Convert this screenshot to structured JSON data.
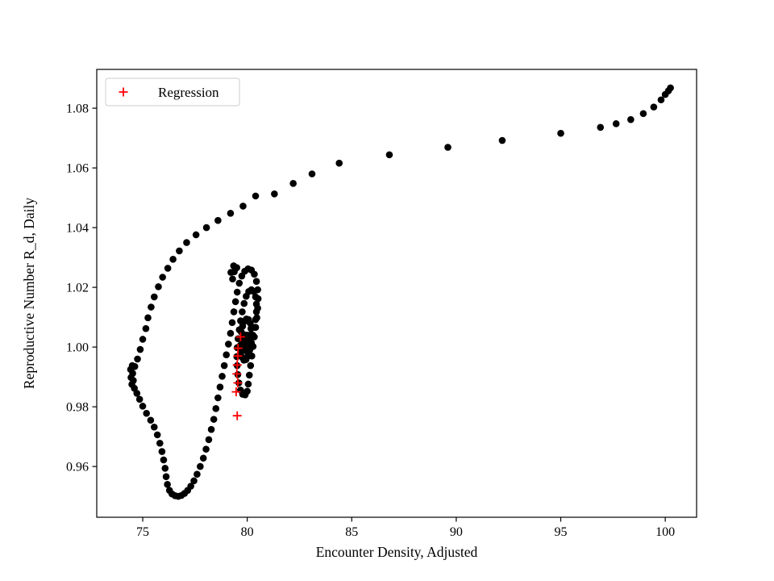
{
  "chart_data": {
    "type": "scatter",
    "title": "",
    "xlabel": "Encounter Density, Adjusted",
    "ylabel": "Reproductive Number R_d, Daily",
    "xlim": [
      72.8,
      101.5
    ],
    "ylim": [
      0.943,
      1.093
    ],
    "xticks": [
      75,
      80,
      85,
      90,
      95,
      100
    ],
    "xtick_labels": [
      "75",
      "80",
      "85",
      "90",
      "95",
      "100"
    ],
    "yticks": [
      0.96,
      0.98,
      1.0,
      1.02,
      1.04,
      1.06,
      1.08
    ],
    "ytick_labels": [
      "0.96",
      "0.98",
      "1.00",
      "1.02",
      "1.04",
      "1.06",
      "1.08"
    ],
    "grid": false,
    "background_color": "#ffffff",
    "spine_color": "#000000",
    "legend": {
      "position": "upper left",
      "edge_color": "#cccccc",
      "entries": [
        {
          "label": "Regression",
          "marker": "plus",
          "color": "#ff0000"
        }
      ]
    },
    "series": [
      {
        "name": "trajectory",
        "marker": "circle",
        "color": "#000000",
        "marker_radius": 4.3,
        "points": [
          [
            100.25,
            1.0868
          ],
          [
            100.15,
            1.0858
          ],
          [
            100.0,
            1.0846
          ],
          [
            99.8,
            1.0828
          ],
          [
            99.45,
            1.0804
          ],
          [
            98.95,
            1.0782
          ],
          [
            98.35,
            1.0762
          ],
          [
            97.65,
            1.0748
          ],
          [
            96.9,
            1.0736
          ],
          [
            95.0,
            1.0716
          ],
          [
            92.2,
            1.0692
          ],
          [
            89.6,
            1.0669
          ],
          [
            86.8,
            1.0644
          ],
          [
            84.4,
            1.0616
          ],
          [
            83.1,
            1.058
          ],
          [
            82.2,
            1.0548
          ],
          [
            81.3,
            1.0513
          ],
          [
            80.4,
            1.0506
          ],
          [
            79.8,
            1.0472
          ],
          [
            79.2,
            1.0448
          ],
          [
            78.6,
            1.0424
          ],
          [
            78.05,
            1.04
          ],
          [
            77.55,
            1.0376
          ],
          [
            77.1,
            1.035
          ],
          [
            76.75,
            1.0322
          ],
          [
            76.45,
            1.0294
          ],
          [
            76.2,
            1.0264
          ],
          [
            75.95,
            1.0234
          ],
          [
            75.75,
            1.0202
          ],
          [
            75.55,
            1.0168
          ],
          [
            75.4,
            1.0134
          ],
          [
            75.25,
            1.0098
          ],
          [
            75.15,
            1.0062
          ],
          [
            75.0,
            1.0026
          ],
          [
            74.88,
            0.9992
          ],
          [
            74.75,
            0.996
          ],
          [
            74.62,
            0.9935
          ],
          [
            74.5,
            0.9938
          ],
          [
            74.42,
            0.9925
          ],
          [
            74.52,
            0.9912
          ],
          [
            74.44,
            0.9898
          ],
          [
            74.55,
            0.9888
          ],
          [
            74.48,
            0.9875
          ],
          [
            74.6,
            0.9862
          ],
          [
            74.72,
            0.9845
          ],
          [
            74.85,
            0.9825
          ],
          [
            75.0,
            0.9802
          ],
          [
            75.18,
            0.9778
          ],
          [
            75.38,
            0.9755
          ],
          [
            75.55,
            0.9732
          ],
          [
            75.7,
            0.9706
          ],
          [
            75.82,
            0.9678
          ],
          [
            75.92,
            0.965
          ],
          [
            76.0,
            0.9622
          ],
          [
            76.07,
            0.9594
          ],
          [
            76.12,
            0.9566
          ],
          [
            76.18,
            0.954
          ],
          [
            76.28,
            0.952
          ],
          [
            76.4,
            0.9508
          ],
          [
            76.55,
            0.9502
          ],
          [
            76.7,
            0.95
          ],
          [
            76.85,
            0.9503
          ],
          [
            77.0,
            0.951
          ],
          [
            77.15,
            0.952
          ],
          [
            77.3,
            0.9534
          ],
          [
            77.45,
            0.9552
          ],
          [
            77.6,
            0.9574
          ],
          [
            77.75,
            0.96
          ],
          [
            77.9,
            0.9628
          ],
          [
            78.03,
            0.9658
          ],
          [
            78.16,
            0.969
          ],
          [
            78.28,
            0.9724
          ],
          [
            78.4,
            0.9758
          ],
          [
            78.5,
            0.9794
          ],
          [
            78.6,
            0.983
          ],
          [
            78.7,
            0.9866
          ],
          [
            78.8,
            0.9902
          ],
          [
            78.9,
            0.9938
          ],
          [
            79.0,
            0.9974
          ],
          [
            79.1,
            1.001
          ],
          [
            79.2,
            1.0046
          ],
          [
            79.28,
            1.0082
          ],
          [
            79.36,
            1.0118
          ],
          [
            79.44,
            1.0152
          ],
          [
            79.52,
            1.0184
          ],
          [
            79.62,
            1.0214
          ],
          [
            79.74,
            1.0238
          ],
          [
            79.88,
            1.0254
          ],
          [
            80.04,
            1.0262
          ],
          [
            80.2,
            1.0258
          ],
          [
            80.34,
            1.0244
          ],
          [
            79.3,
            1.0228
          ],
          [
            79.38,
            1.0252
          ],
          [
            79.5,
            1.0266
          ],
          [
            79.35,
            1.0272
          ],
          [
            79.22,
            1.025
          ],
          [
            80.44,
            1.022
          ],
          [
            80.5,
            1.0192
          ],
          [
            80.52,
            1.0162
          ],
          [
            80.5,
            1.013
          ],
          [
            80.46,
            1.0098
          ],
          [
            80.4,
            1.0066
          ],
          [
            80.34,
            1.0034
          ],
          [
            80.28,
            1.0002
          ],
          [
            80.22,
            0.997
          ],
          [
            80.16,
            0.9938
          ],
          [
            80.1,
            0.9906
          ],
          [
            80.05,
            0.9876
          ],
          [
            80.0,
            0.9852
          ],
          [
            79.9,
            0.984
          ],
          [
            79.78,
            0.9842
          ],
          [
            79.68,
            0.9856
          ],
          [
            79.6,
            0.988
          ],
          [
            79.55,
            0.9908
          ],
          [
            79.52,
            0.9938
          ],
          [
            79.5,
            0.9968
          ],
          [
            79.52,
            0.9998
          ],
          [
            79.56,
            1.0028
          ],
          [
            79.62,
            1.0058
          ],
          [
            79.68,
            1.0088
          ],
          [
            79.76,
            1.0118
          ],
          [
            79.85,
            1.0146
          ],
          [
            79.95,
            1.017
          ],
          [
            80.07,
            1.0186
          ],
          [
            80.2,
            1.0192
          ],
          [
            80.32,
            1.0186
          ],
          [
            80.4,
            1.0168
          ],
          [
            80.44,
            1.0144
          ],
          [
            80.44,
            1.0118
          ],
          [
            80.4,
            1.0092
          ],
          [
            80.34,
            1.0066
          ],
          [
            80.27,
            1.004
          ],
          [
            80.2,
            1.0014
          ],
          [
            80.12,
            0.999
          ],
          [
            80.04,
            0.997
          ],
          [
            79.94,
            0.9958
          ],
          [
            79.84,
            0.9956
          ],
          [
            79.76,
            0.9966
          ],
          [
            79.7,
            0.9984
          ],
          [
            79.67,
            1.0006
          ],
          [
            79.68,
            1.0028
          ],
          [
            79.72,
            1.005
          ],
          [
            79.78,
            1.007
          ],
          [
            79.86,
            1.0086
          ],
          [
            79.96,
            1.0094
          ],
          [
            80.06,
            1.0092
          ],
          [
            80.14,
            1.008
          ],
          [
            80.18,
            1.0062
          ],
          [
            80.18,
            1.0042
          ],
          [
            80.14,
            1.0022
          ],
          [
            80.08,
            1.0004
          ],
          [
            80.0,
            0.9992
          ],
          [
            79.92,
            0.9988
          ],
          [
            79.85,
            0.9994
          ],
          [
            79.81,
            1.0006
          ],
          [
            79.81,
            1.002
          ],
          [
            79.85,
            1.0032
          ],
          [
            79.92,
            1.004
          ],
          [
            79.99,
            1.004
          ],
          [
            80.05,
            1.0032
          ],
          [
            80.08,
            1.002
          ],
          [
            80.07,
            1.0006
          ],
          [
            80.02,
            0.9996
          ],
          [
            79.96,
            0.9992
          ],
          [
            79.9,
            0.9996
          ],
          [
            79.87,
            1.0004
          ],
          [
            79.88,
            1.0014
          ],
          [
            79.93,
            1.002
          ],
          [
            79.98,
            1.002
          ],
          [
            80.02,
            1.0014
          ],
          [
            80.02,
            1.0004
          ],
          [
            79.97,
            0.9999
          ],
          [
            79.93,
            1.0002
          ],
          [
            79.96,
            1.0008
          ],
          [
            80.0,
            1.0008
          ]
        ]
      },
      {
        "name": "Regression",
        "marker": "plus",
        "color": "#ff0000",
        "marker_half_size": 5.5,
        "points": [
          [
            79.68,
            1.0034
          ],
          [
            79.56,
            0.9996
          ],
          [
            79.55,
            0.997
          ],
          [
            79.52,
            0.994
          ],
          [
            79.5,
            0.991
          ],
          [
            79.55,
            0.988
          ],
          [
            79.47,
            0.985
          ],
          [
            79.52,
            0.977
          ]
        ]
      }
    ]
  }
}
